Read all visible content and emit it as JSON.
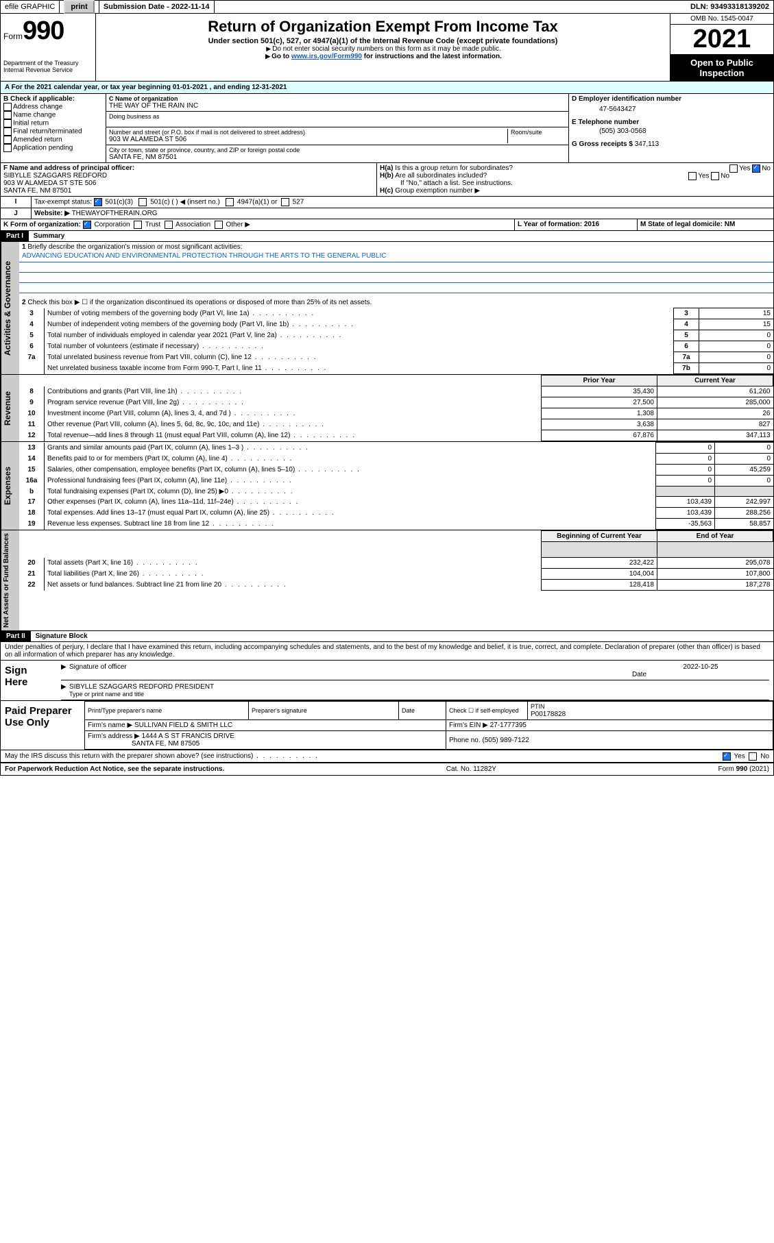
{
  "topbar": {
    "efile": "efile GRAPHIC",
    "print": "print",
    "subdate_label": "Submission Date - ",
    "subdate": "2022-11-14",
    "dln_label": "DLN: ",
    "dln": "93493318139202"
  },
  "header": {
    "form_small": "Form",
    "form_big": "990",
    "dept": "Department of the Treasury Internal Revenue Service",
    "title": "Return of Organization Exempt From Income Tax",
    "sub1": "Under section 501(c), 527, or 4947(a)(1) of the Internal Revenue Code (except private foundations)",
    "sub2": "Do not enter social security numbers on this form as it may be made public.",
    "sub3a": "Go to ",
    "sub3_link": "www.irs.gov/Form990",
    "sub3b": " for instructions and the latest information.",
    "omb": "OMB No. 1545-0047",
    "year": "2021",
    "openpub": "Open to Public Inspection"
  },
  "a_line": "For the 2021 calendar year, or tax year beginning 01-01-2021 , and ending 12-31-2021",
  "b": {
    "label": "B Check if applicable:",
    "items": [
      "Address change",
      "Name change",
      "Initial return",
      "Final return/terminated",
      "Amended return",
      "Application pending"
    ]
  },
  "c": {
    "name_label": "C Name of organization",
    "name": "THE WAY OF THE RAIN INC",
    "dba": "Doing business as",
    "street_label": "Number and street (or P.O. box if mail is not delivered to street address)",
    "room_label": "Room/suite",
    "street": "903 W ALAMEDA ST 506",
    "city_label": "City or town, state or province, country, and ZIP or foreign postal code",
    "city": "SANTA FE, NM  87501"
  },
  "d": {
    "label": "D Employer identification number",
    "value": "47-5643427"
  },
  "e": {
    "label": "E Telephone number",
    "value": "(505) 303-0568"
  },
  "g": {
    "label": "G Gross receipts $",
    "value": "347,113"
  },
  "f": {
    "label": "F Name and address of principal officer:",
    "name": "SIBYLLE SZAGGARS REDFORD",
    "addr1": "903 W ALAMEDA ST STE 506",
    "addr2": "SANTA FE, NM  87501"
  },
  "ha": "Is this a group return for subordinates?",
  "hb": "Are all subordinates included?",
  "hc_note": "If \"No,\" attach a list. See instructions.",
  "hc": "Group exemption number ▶",
  "i_label": "Tax-exempt status:",
  "i_opts": [
    "501(c)(3)",
    "501(c) (   ) ◀ (insert no.)",
    "4947(a)(1) or",
    "527"
  ],
  "j_label": "Website: ▶",
  "j_value": "THEWAYOFTHERAIN.ORG",
  "k_label": "K Form of organization:",
  "k_opts": [
    "Corporation",
    "Trust",
    "Association",
    "Other ▶"
  ],
  "l": "L Year of formation: 2016",
  "m": "M State of legal domicile: NM",
  "part1": {
    "bar": "Part I",
    "title": "Summary",
    "q1": "Briefly describe the organization's mission or most significant activities:",
    "mission": "ADVANCING EDUCATION AND ENVIRONMENTAL PROTECTION THROUGH THE ARTS TO THE GENERAL PUBLIC",
    "q2": "Check this box ▶ ☐ if the organization discontinued its operations or disposed of more than 25% of its net assets.",
    "gov_rows": [
      {
        "n": "3",
        "t": "Number of voting members of the governing body (Part VI, line 1a)",
        "c": "3",
        "v": "15"
      },
      {
        "n": "4",
        "t": "Number of independent voting members of the governing body (Part VI, line 1b)",
        "c": "4",
        "v": "15"
      },
      {
        "n": "5",
        "t": "Total number of individuals employed in calendar year 2021 (Part V, line 2a)",
        "c": "5",
        "v": "0"
      },
      {
        "n": "6",
        "t": "Total number of volunteers (estimate if necessary)",
        "c": "6",
        "v": "0"
      },
      {
        "n": "7a",
        "t": "Total unrelated business revenue from Part VIII, column (C), line 12",
        "c": "7a",
        "v": "0"
      },
      {
        "n": "",
        "t": "Net unrelated business taxable income from Form 990-T, Part I, line 11",
        "c": "7b",
        "v": "0"
      }
    ],
    "headers_py": "Prior Year",
    "headers_cy": "Current Year",
    "rev_rows": [
      {
        "n": "8",
        "t": "Contributions and grants (Part VIII, line 1h)",
        "p": "35,430",
        "c": "61,260"
      },
      {
        "n": "9",
        "t": "Program service revenue (Part VIII, line 2g)",
        "p": "27,500",
        "c": "285,000"
      },
      {
        "n": "10",
        "t": "Investment income (Part VIII, column (A), lines 3, 4, and 7d )",
        "p": "1,308",
        "c": "26"
      },
      {
        "n": "11",
        "t": "Other revenue (Part VIII, column (A), lines 5, 6d, 8c, 9c, 10c, and 11e)",
        "p": "3,638",
        "c": "827"
      },
      {
        "n": "12",
        "t": "Total revenue—add lines 8 through 11 (must equal Part VIII, column (A), line 12)",
        "p": "67,876",
        "c": "347,113"
      }
    ],
    "exp_rows": [
      {
        "n": "13",
        "t": "Grants and similar amounts paid (Part IX, column (A), lines 1–3 )",
        "p": "0",
        "c": "0"
      },
      {
        "n": "14",
        "t": "Benefits paid to or for members (Part IX, column (A), line 4)",
        "p": "0",
        "c": "0"
      },
      {
        "n": "15",
        "t": "Salaries, other compensation, employee benefits (Part IX, column (A), lines 5–10)",
        "p": "0",
        "c": "45,259"
      },
      {
        "n": "16a",
        "t": "Professional fundraising fees (Part IX, column (A), line 11e)",
        "p": "0",
        "c": "0"
      },
      {
        "n": "b",
        "t": "Total fundraising expenses (Part IX, column (D), line 25) ▶0",
        "p": "__shade__",
        "c": "__shade__"
      },
      {
        "n": "17",
        "t": "Other expenses (Part IX, column (A), lines 11a–11d, 11f–24e)",
        "p": "103,439",
        "c": "242,997"
      },
      {
        "n": "18",
        "t": "Total expenses. Add lines 13–17 (must equal Part IX, column (A), line 25)",
        "p": "103,439",
        "c": "288,256"
      },
      {
        "n": "19",
        "t": "Revenue less expenses. Subtract line 18 from line 12",
        "p": "-35,563",
        "c": "58,857"
      }
    ],
    "headers_bcy": "Beginning of Current Year",
    "headers_eoy": "End of Year",
    "net_rows": [
      {
        "n": "20",
        "t": "Total assets (Part X, line 16)",
        "p": "232,422",
        "c": "295,078"
      },
      {
        "n": "21",
        "t": "Total liabilities (Part X, line 26)",
        "p": "104,004",
        "c": "107,800"
      },
      {
        "n": "22",
        "t": "Net assets or fund balances. Subtract line 21 from line 20",
        "p": "128,418",
        "c": "187,278"
      }
    ],
    "vtabs": {
      "gov": "Activities & Governance",
      "rev": "Revenue",
      "exp": "Expenses",
      "net": "Net Assets or Fund Balances"
    }
  },
  "part2": {
    "bar": "Part II",
    "title": "Signature Block",
    "pen": "Under penalties of perjury, I declare that I have examined this return, including accompanying schedules and statements, and to the best of my knowledge and belief, it is true, correct, and complete. Declaration of preparer (other than officer) is based on all information of which preparer has any knowledge.",
    "sign_here": "Sign Here",
    "sig_officer": "Signature of officer",
    "date_label": "Date",
    "date": "2022-10-25",
    "officer_name": "SIBYLLE SZAGGARS REDFORD  PRESIDENT",
    "officer_caption": "Type or print name and title",
    "paid": "Paid Preparer Use Only",
    "prep_name_h": "Print/Type preparer's name",
    "prep_sig_h": "Preparer's signature",
    "prep_date_h": "Date",
    "check_if": "Check ☐ if self-employed",
    "ptin_label": "PTIN",
    "ptin": "P00178828",
    "firm_name_l": "Firm's name ▶",
    "firm_name": "SULLIVAN FIELD & SMITH LLC",
    "firm_ein_l": "Firm's EIN ▶",
    "firm_ein": "27-1777395",
    "firm_addr_l": "Firm's address ▶",
    "firm_addr1": "1444 A S ST FRANCIS DRIVE",
    "firm_addr2": "SANTA FE, NM  87505",
    "phone_l": "Phone no.",
    "phone": "(505) 989-7122",
    "may_irs": "May the IRS discuss this return with the preparer shown above? (see instructions)"
  },
  "footer": {
    "left": "For Paperwork Reduction Act Notice, see the separate instructions.",
    "mid": "Cat. No. 11282Y",
    "right": "Form 990 (2021)"
  },
  "labels": {
    "yes": "Yes",
    "no": "No",
    "ha": "H(a)",
    "hb": "H(b)",
    "hc": "H(c)",
    "i": "I",
    "j": "J",
    "a": "A",
    "b": "b"
  }
}
